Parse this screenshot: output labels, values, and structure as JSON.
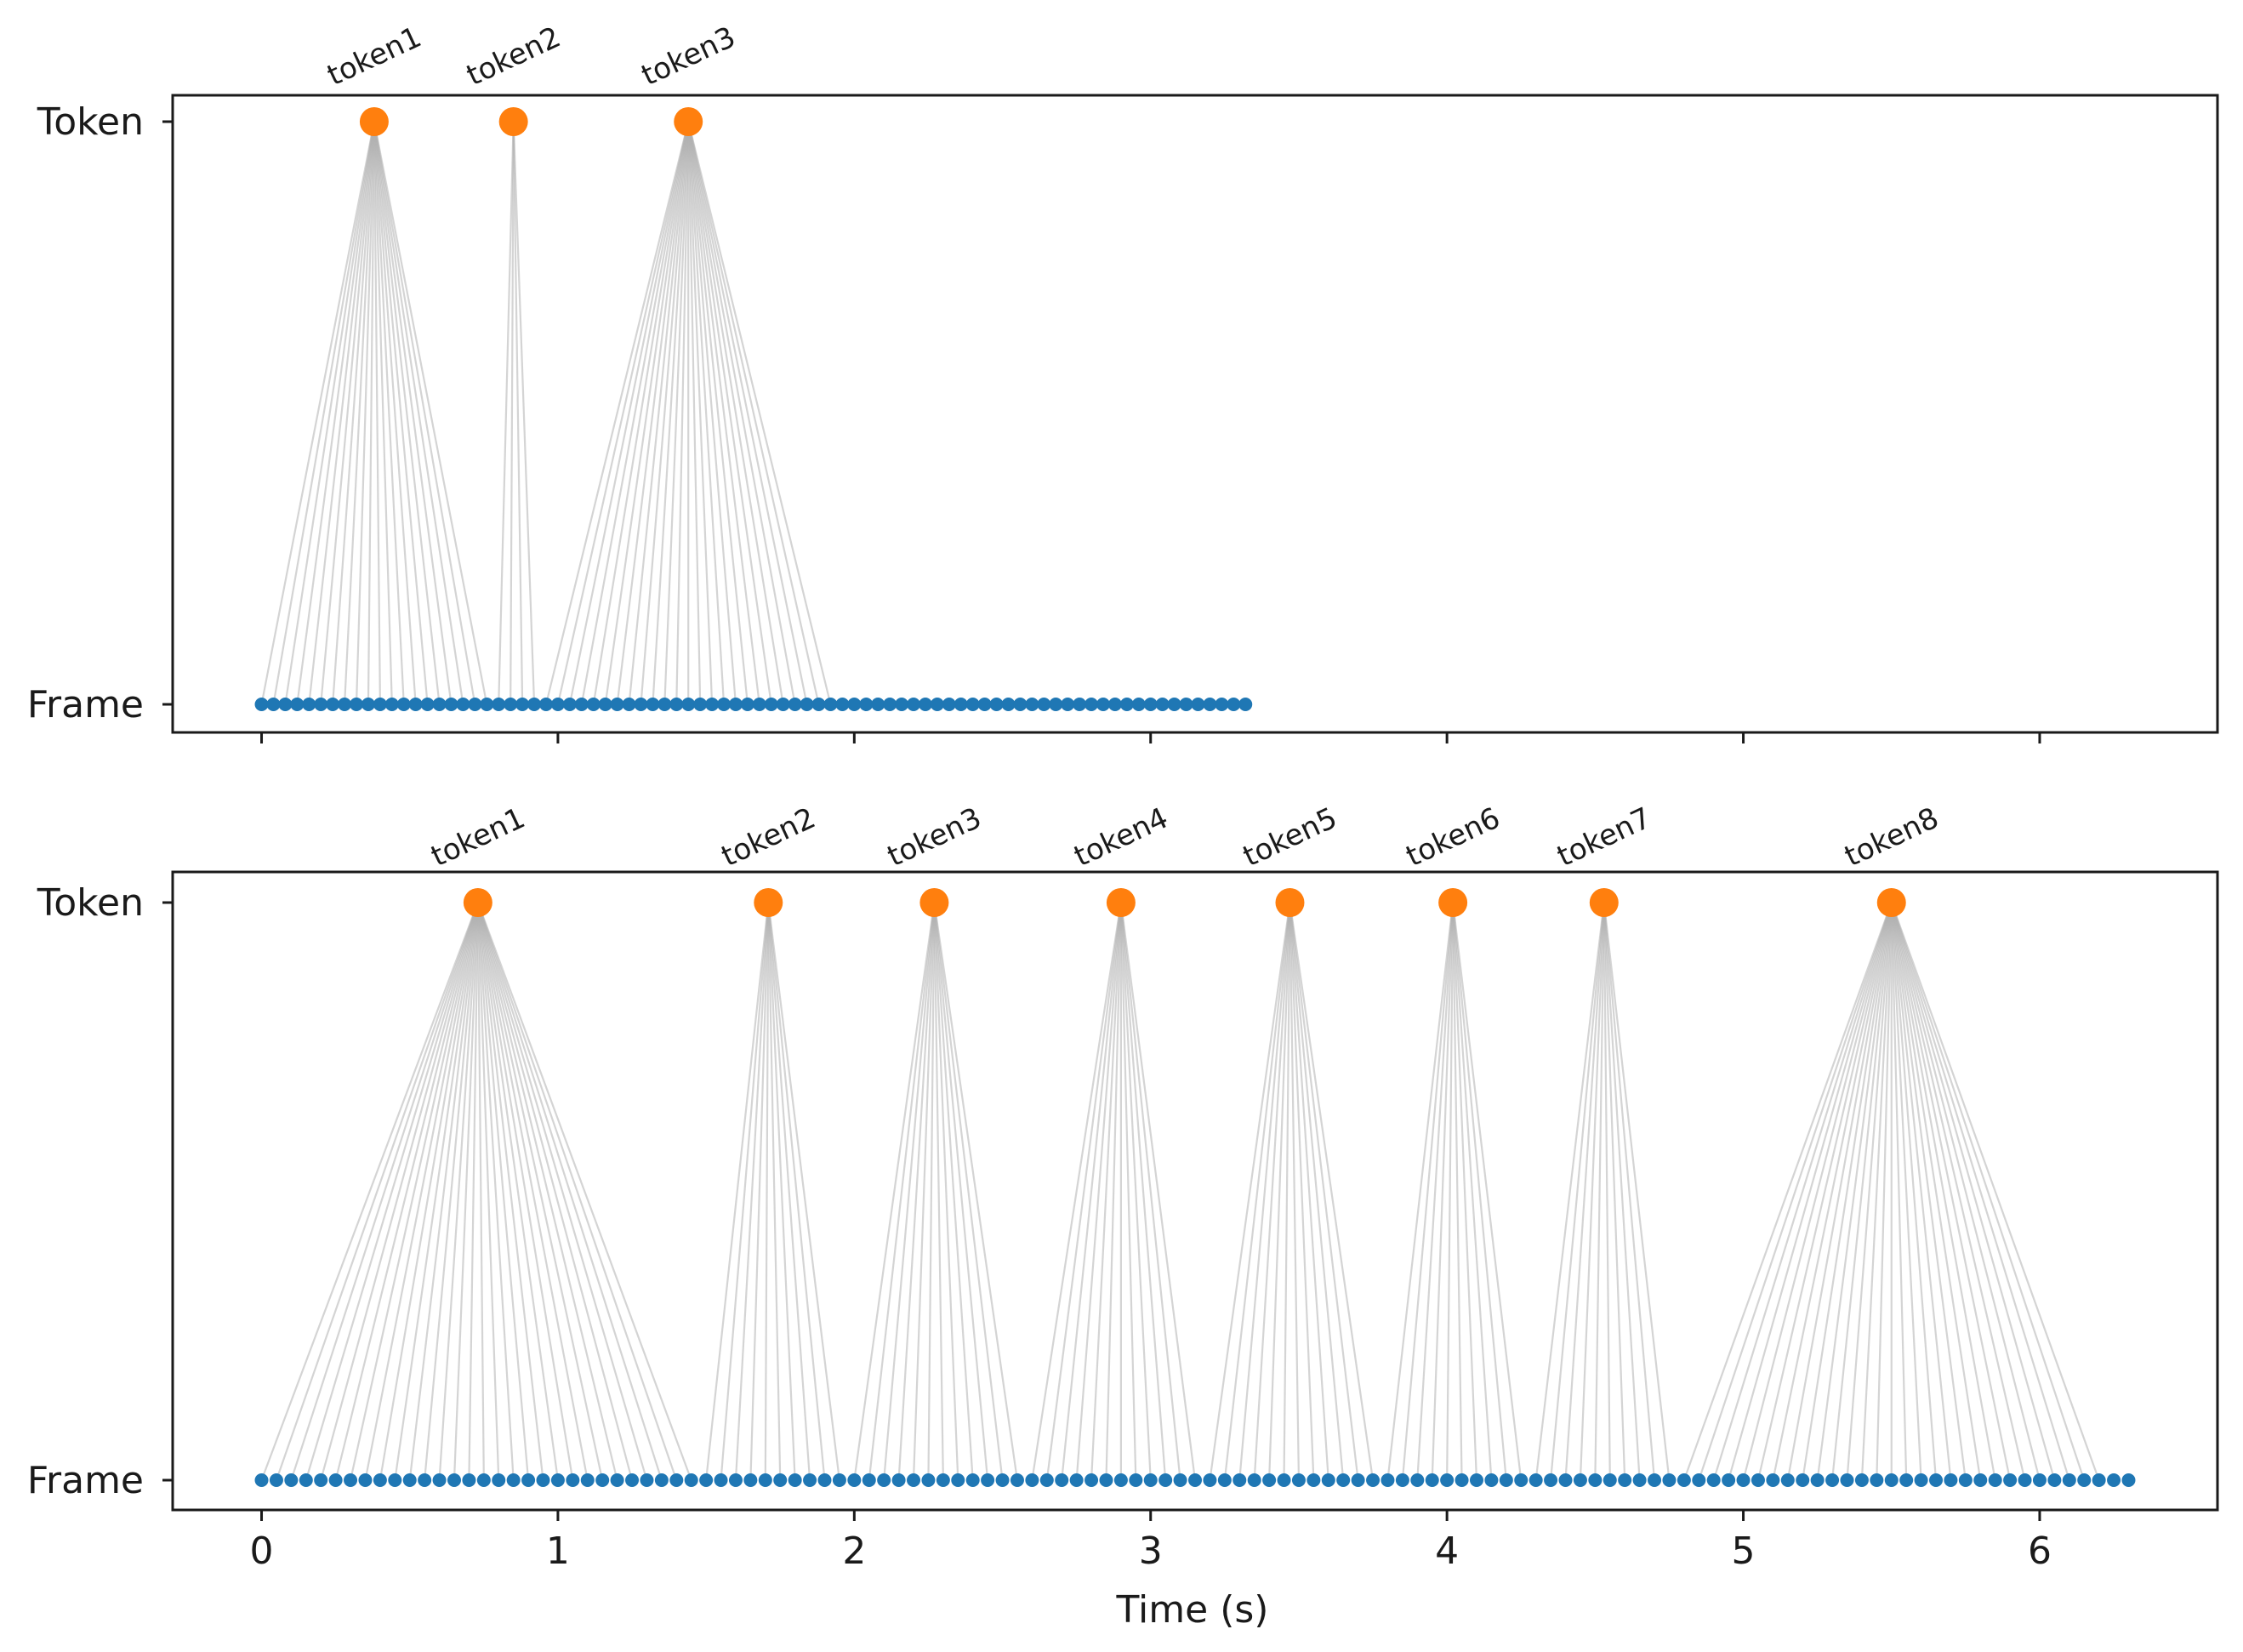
{
  "chart_data": [
    {
      "type": "scatter",
      "panel": "top",
      "yticklabels": [
        "Token",
        "Frame"
      ],
      "xlim": [
        -0.3,
        6.6
      ],
      "xticks": [
        0,
        1,
        2,
        3,
        4,
        5,
        6
      ],
      "show_xticklabels": false,
      "xlabel": "",
      "frame_step": 0.04,
      "frames_x_range": [
        0.0,
        3.32
      ],
      "frame_color": "#1f77b4",
      "token_color": "#ff7f0e",
      "link_color": "#b0b0b0",
      "tokens": [
        {
          "label": "token1",
          "x": 0.38,
          "start": 0.0,
          "end": 0.76
        },
        {
          "label": "token2",
          "x": 0.85,
          "start": 0.8,
          "end": 0.92
        },
        {
          "label": "token3",
          "x": 1.44,
          "start": 0.96,
          "end": 1.94
        }
      ]
    },
    {
      "type": "scatter",
      "panel": "bottom",
      "yticklabels": [
        "Token",
        "Frame"
      ],
      "xlim": [
        -0.3,
        6.6
      ],
      "xticks": [
        0,
        1,
        2,
        3,
        4,
        5,
        6
      ],
      "xticklabels": [
        "0",
        "1",
        "2",
        "3",
        "4",
        "5",
        "6"
      ],
      "show_xticklabels": true,
      "xlabel": "Time (s)",
      "frame_step": 0.05,
      "frames_x_range": [
        0.0,
        6.3
      ],
      "frame_color": "#1f77b4",
      "token_color": "#ff7f0e",
      "link_color": "#b0b0b0",
      "tokens": [
        {
          "label": "token1",
          "x": 0.73,
          "start": 0.0,
          "end": 1.45
        },
        {
          "label": "token2",
          "x": 1.71,
          "start": 1.5,
          "end": 1.95
        },
        {
          "label": "token3",
          "x": 2.27,
          "start": 2.0,
          "end": 2.55
        },
        {
          "label": "token4",
          "x": 2.9,
          "start": 2.6,
          "end": 3.15
        },
        {
          "label": "token5",
          "x": 3.47,
          "start": 3.2,
          "end": 3.75
        },
        {
          "label": "token6",
          "x": 4.02,
          "start": 3.8,
          "end": 4.25
        },
        {
          "label": "token7",
          "x": 4.53,
          "start": 4.3,
          "end": 4.75
        },
        {
          "label": "token8",
          "x": 5.5,
          "start": 4.8,
          "end": 6.2
        }
      ]
    }
  ]
}
